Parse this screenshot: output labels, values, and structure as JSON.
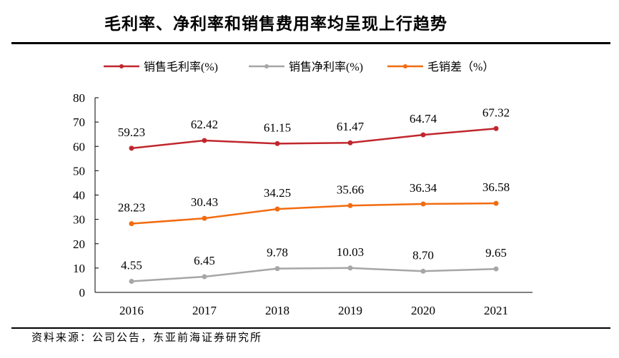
{
  "title": "毛利率、净利率和销售费用率均呈现上行趋势",
  "source": "资料来源：公司公告，东亚前海证券研究所",
  "chart_data": {
    "type": "line",
    "categories": [
      "2016",
      "2017",
      "2018",
      "2019",
      "2020",
      "2021"
    ],
    "ylim": [
      0,
      80
    ],
    "yticks": [
      0,
      10,
      20,
      30,
      40,
      50,
      60,
      70,
      80
    ],
    "grid": false,
    "legend_position": "top",
    "series": [
      {
        "name": "销售毛利率(%)",
        "color": "#C0272D",
        "values": [
          59.23,
          62.42,
          61.15,
          61.47,
          64.74,
          67.32
        ],
        "labels": [
          "59.23",
          "62.42",
          "61.15",
          "61.47",
          "64.74",
          "67.32"
        ]
      },
      {
        "name": "销售净利率(%)",
        "color": "#A6A6A6",
        "values": [
          4.55,
          6.45,
          9.78,
          10.03,
          8.7,
          9.65
        ],
        "labels": [
          "4.55",
          "6.45",
          "9.78",
          "10.03",
          "8.70",
          "9.65"
        ]
      },
      {
        "name": "毛销差（%）",
        "color": "#F26B0F",
        "values": [
          28.23,
          30.43,
          34.25,
          35.66,
          36.34,
          36.58
        ],
        "labels": [
          "28.23",
          "30.43",
          "34.25",
          "35.66",
          "36.34",
          "36.58"
        ]
      }
    ]
  }
}
